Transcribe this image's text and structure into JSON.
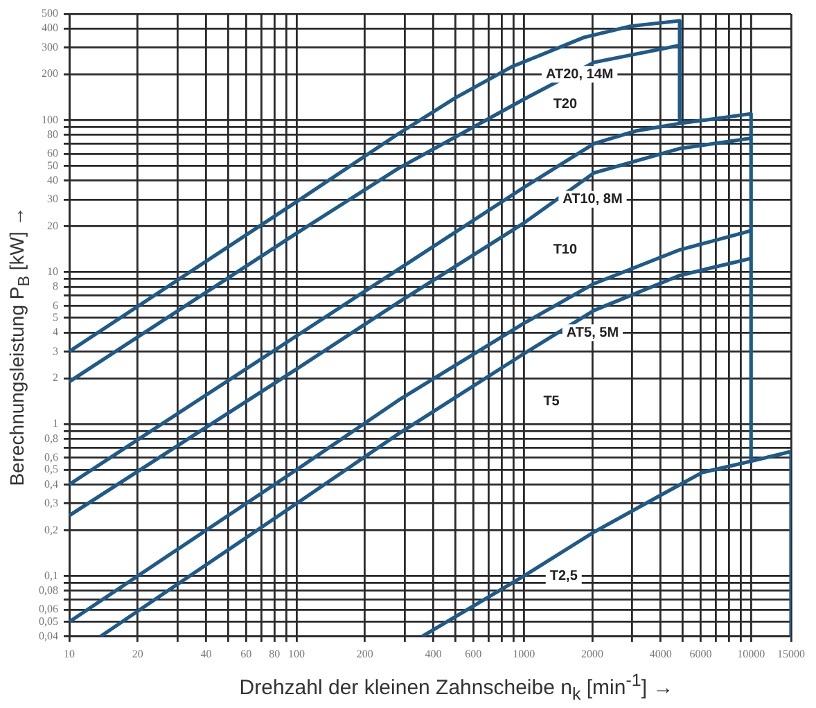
{
  "chart_data": {
    "type": "line",
    "xlabel": "Drehzahl der kleinen Zahnscheibe n$_{k}$ [min$^{-1}$] →",
    "ylabel": "Berechnungsleistung P$_{B}$ [kW] →",
    "log": "xy",
    "grid": true,
    "legend": false,
    "marker": "none",
    "xlim": [
      10,
      15000
    ],
    "ylim": [
      0.04,
      500
    ],
    "xticks": [
      10,
      20,
      {
        "value": 30,
        "label": null
      },
      40,
      {
        "value": 50,
        "label": null
      },
      60,
      {
        "value": 70,
        "label": null
      },
      80,
      {
        "value": 90,
        "label": null
      },
      100,
      200,
      {
        "value": 300,
        "label": null
      },
      400,
      {
        "value": 500,
        "label": null
      },
      600,
      {
        "value": 700,
        "label": null
      },
      {
        "value": 800,
        "label": null
      },
      {
        "value": 900,
        "label": null
      },
      1000,
      2000,
      {
        "value": 3000,
        "label": null
      },
      4000,
      {
        "value": 5000,
        "label": null
      },
      6000,
      {
        "value": 7000,
        "label": null
      },
      {
        "value": 8000,
        "label": null
      },
      {
        "value": 9000,
        "label": null
      },
      10000,
      15000
    ],
    "yticks": [
      {
        "value": 0.04,
        "label": "0,04"
      },
      {
        "value": 0.05,
        "label": "0,05"
      },
      {
        "value": 0.06,
        "label": "0,06"
      },
      {
        "value": 0.07,
        "label": null
      },
      {
        "value": 0.08,
        "label": "0,08"
      },
      {
        "value": 0.09,
        "label": null
      },
      {
        "value": 0.1,
        "label": "0,1"
      },
      {
        "value": 0.2,
        "label": "0,2"
      },
      {
        "value": 0.3,
        "label": "0,3"
      },
      {
        "value": 0.4,
        "label": "0,4"
      },
      {
        "value": 0.5,
        "label": "0,5"
      },
      {
        "value": 0.6,
        "label": "0,6"
      },
      {
        "value": 0.7,
        "label": null
      },
      {
        "value": 0.8,
        "label": "0,8"
      },
      {
        "value": 0.9,
        "label": null
      },
      1,
      2,
      3,
      4,
      5,
      6,
      {
        "value": 7,
        "label": null
      },
      8,
      {
        "value": 9,
        "label": null
      },
      10,
      20,
      30,
      40,
      50,
      60,
      {
        "value": 70,
        "label": null
      },
      80,
      {
        "value": 90,
        "label": null
      },
      100,
      200,
      300,
      400,
      500
    ],
    "series": [
      {
        "color": "#1e5a8a",
        "x": [
          10,
          100,
          280,
          500,
          890,
          1840,
          2950,
          4850
        ],
        "values": [
          3,
          29,
          81,
          140,
          225,
          350,
          415,
          450
        ]
      },
      {
        "color": "#1e5a8a",
        "x": [
          10,
          100,
          280,
          1000,
          2040,
          4850
        ],
        "values": [
          1.9,
          18,
          48,
          137,
          240,
          310
        ]
      },
      {
        "color": "#1e5a8a",
        "x": [
          4850,
          4850
        ],
        "values": [
          450,
          95
        ]
      },
      {
        "color": "#1e5a8a",
        "x": [
          10,
          100,
          280,
          1000,
          2040,
          3130,
          4850,
          10000
        ],
        "values": [
          0.4,
          3.8,
          10.4,
          36,
          70,
          85,
          95,
          110
        ]
      },
      {
        "color": "#1e5a8a",
        "x": [
          10,
          100,
          280,
          1000,
          2040,
          4850,
          10000
        ],
        "values": [
          0.25,
          2.3,
          6.3,
          21,
          45,
          65,
          76
        ]
      },
      {
        "color": "#1e5a8a",
        "x": [
          10000,
          10000
        ],
        "values": [
          110,
          0.57
        ]
      },
      {
        "color": "#1e5a8a",
        "x": [
          10,
          100,
          280,
          1000,
          2040,
          4850,
          10000
        ],
        "values": [
          0.05,
          0.5,
          1.43,
          4.6,
          8.4,
          14,
          18.7
        ]
      },
      {
        "color": "#1e5a8a",
        "x": [
          13.7,
          100,
          280,
          1000,
          2040,
          4850,
          10000
        ],
        "values": [
          0.04,
          0.3,
          0.86,
          2.9,
          5.6,
          9.5,
          12.3
        ]
      },
      {
        "color": "#1e5a8a",
        "x": [
          357,
          1000,
          2040,
          4000,
          6100,
          10000,
          15000
        ],
        "values": [
          0.04,
          0.1,
          0.195,
          0.34,
          0.48,
          0.57,
          0.66
        ]
      },
      {
        "color": "#1e5a8a",
        "x": [
          15000,
          15000
        ],
        "values": [
          0.66,
          0.04
        ]
      }
    ],
    "annotations": [
      "AT20, 14M",
      "T20",
      "AT10, 8M",
      "T10",
      "AT5, 5M",
      "T5",
      "T2,5"
    ]
  }
}
